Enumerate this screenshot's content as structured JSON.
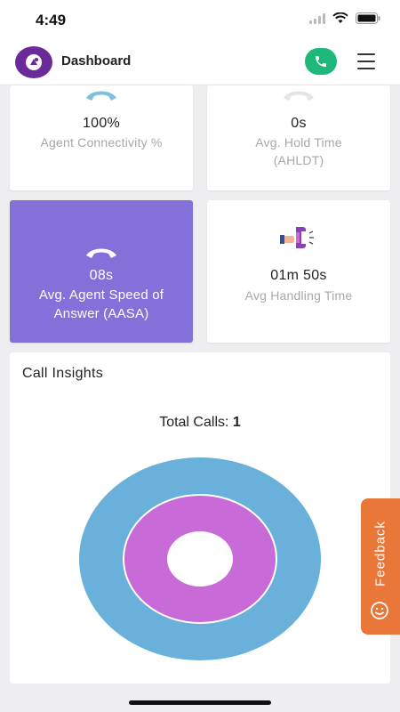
{
  "status_bar": {
    "time": "4:49"
  },
  "header": {
    "title": "Dashboard"
  },
  "cards": [
    {
      "value": "100%",
      "label": "Agent Connectivity %",
      "icon": "phone-hangup-icon",
      "icon_color": "#7fbfe0",
      "active": false
    },
    {
      "value": "0s",
      "label": "Avg. Hold Time (AHLDT)",
      "icon": "phone-hangup-icon",
      "icon_color": "#e0e0e0",
      "active": false
    },
    {
      "value": "08s",
      "label": "Avg. Agent Speed of Answer (AASA)",
      "icon": "phone-hangup-icon",
      "icon_color": "#ffffff",
      "active": true
    },
    {
      "value": "01m 50s",
      "label": "Avg Handling Time",
      "icon": "hand-phone-icon",
      "active": false
    }
  ],
  "insights": {
    "title": "Call Insights",
    "total_calls_label": "Total Calls:",
    "total_calls_value": "1"
  },
  "chart_data": {
    "type": "pie",
    "style": "concentric-rings",
    "series": [
      {
        "values": [
          1
        ],
        "color": "#69b0da"
      },
      {
        "values": [
          1
        ],
        "color": "#c86ad8"
      }
    ]
  },
  "feedback": {
    "label": "Feedback",
    "icon": "smiley-icon"
  },
  "colors": {
    "accent": "#8470d9",
    "call_green": "#1db87a",
    "feedback_orange": "#e9773a",
    "outer_ring": "#69b0da",
    "inner_ring": "#c86ad8"
  }
}
